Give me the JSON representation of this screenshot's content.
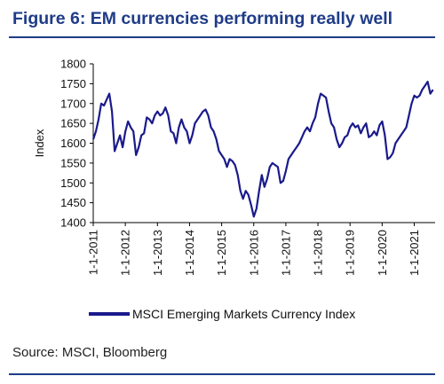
{
  "title": "Figure 6: EM currencies performing really well",
  "source": "Source: MSCI, Bloomberg",
  "colors": {
    "line": "#1a1a8c",
    "title": "#1f3c88",
    "rule": "#1f3c88"
  },
  "chart_data": {
    "type": "line",
    "title": "",
    "xlabel": "",
    "ylabel": "Index",
    "ylim": [
      1400,
      1800
    ],
    "yticks": [
      1400,
      1450,
      1500,
      1550,
      1600,
      1650,
      1700,
      1750,
      1800
    ],
    "xticks": [
      "1-1-2011",
      "1-1-2012",
      "1-1-2013",
      "1-1-2014",
      "1-1-2015",
      "1-1-2016",
      "1-1-2017",
      "1-1-2018",
      "1-1-2019",
      "1-1-2020",
      "1-1-2021"
    ],
    "grid": false,
    "legend_position": "bottom",
    "series": [
      {
        "name": "MSCI Emerging Markets Currency Index",
        "points": [
          [
            "2011-01-01",
            1610
          ],
          [
            "2011-02-01",
            1630
          ],
          [
            "2011-03-01",
            1660
          ],
          [
            "2011-04-01",
            1700
          ],
          [
            "2011-05-01",
            1695
          ],
          [
            "2011-06-01",
            1710
          ],
          [
            "2011-07-01",
            1725
          ],
          [
            "2011-08-01",
            1680
          ],
          [
            "2011-09-01",
            1580
          ],
          [
            "2011-10-01",
            1600
          ],
          [
            "2011-11-01",
            1620
          ],
          [
            "2011-12-01",
            1590
          ],
          [
            "2012-01-01",
            1630
          ],
          [
            "2012-02-01",
            1655
          ],
          [
            "2012-03-01",
            1640
          ],
          [
            "2012-04-01",
            1630
          ],
          [
            "2012-05-01",
            1570
          ],
          [
            "2012-06-01",
            1590
          ],
          [
            "2012-07-01",
            1620
          ],
          [
            "2012-08-01",
            1625
          ],
          [
            "2012-09-01",
            1665
          ],
          [
            "2012-10-01",
            1660
          ],
          [
            "2012-11-01",
            1650
          ],
          [
            "2012-12-01",
            1670
          ],
          [
            "2013-01-01",
            1680
          ],
          [
            "2013-02-01",
            1670
          ],
          [
            "2013-03-01",
            1675
          ],
          [
            "2013-04-01",
            1690
          ],
          [
            "2013-05-01",
            1670
          ],
          [
            "2013-06-01",
            1630
          ],
          [
            "2013-07-01",
            1625
          ],
          [
            "2013-08-01",
            1600
          ],
          [
            "2013-09-01",
            1640
          ],
          [
            "2013-10-01",
            1660
          ],
          [
            "2013-11-01",
            1640
          ],
          [
            "2013-12-01",
            1630
          ],
          [
            "2014-01-01",
            1600
          ],
          [
            "2014-02-01",
            1620
          ],
          [
            "2014-03-01",
            1650
          ],
          [
            "2014-04-01",
            1660
          ],
          [
            "2014-05-01",
            1670
          ],
          [
            "2014-06-01",
            1680
          ],
          [
            "2014-07-01",
            1685
          ],
          [
            "2014-08-01",
            1670
          ],
          [
            "2014-09-01",
            1640
          ],
          [
            "2014-10-01",
            1630
          ],
          [
            "2014-11-01",
            1610
          ],
          [
            "2014-12-01",
            1580
          ],
          [
            "2015-01-01",
            1570
          ],
          [
            "2015-02-01",
            1560
          ],
          [
            "2015-03-01",
            1540
          ],
          [
            "2015-04-01",
            1560
          ],
          [
            "2015-05-01",
            1555
          ],
          [
            "2015-06-01",
            1545
          ],
          [
            "2015-07-01",
            1520
          ],
          [
            "2015-08-01",
            1480
          ],
          [
            "2015-09-01",
            1460
          ],
          [
            "2015-10-01",
            1480
          ],
          [
            "2015-11-01",
            1470
          ],
          [
            "2015-12-01",
            1445
          ],
          [
            "2016-01-01",
            1415
          ],
          [
            "2016-02-01",
            1435
          ],
          [
            "2016-03-01",
            1480
          ],
          [
            "2016-04-01",
            1520
          ],
          [
            "2016-05-01",
            1490
          ],
          [
            "2016-06-01",
            1510
          ],
          [
            "2016-07-01",
            1540
          ],
          [
            "2016-08-01",
            1550
          ],
          [
            "2016-09-01",
            1545
          ],
          [
            "2016-10-01",
            1540
          ],
          [
            "2016-11-01",
            1500
          ],
          [
            "2016-12-01",
            1505
          ],
          [
            "2017-01-01",
            1530
          ],
          [
            "2017-02-01",
            1560
          ],
          [
            "2017-03-01",
            1570
          ],
          [
            "2017-04-01",
            1580
          ],
          [
            "2017-05-01",
            1590
          ],
          [
            "2017-06-01",
            1600
          ],
          [
            "2017-07-01",
            1615
          ],
          [
            "2017-08-01",
            1630
          ],
          [
            "2017-09-01",
            1640
          ],
          [
            "2017-10-01",
            1630
          ],
          [
            "2017-11-01",
            1650
          ],
          [
            "2017-12-01",
            1665
          ],
          [
            "2018-01-01",
            1700
          ],
          [
            "2018-02-01",
            1725
          ],
          [
            "2018-03-01",
            1720
          ],
          [
            "2018-04-01",
            1715
          ],
          [
            "2018-05-01",
            1680
          ],
          [
            "2018-06-01",
            1650
          ],
          [
            "2018-07-01",
            1640
          ],
          [
            "2018-08-01",
            1610
          ],
          [
            "2018-09-01",
            1590
          ],
          [
            "2018-10-01",
            1600
          ],
          [
            "2018-11-01",
            1615
          ],
          [
            "2018-12-01",
            1620
          ],
          [
            "2019-01-01",
            1640
          ],
          [
            "2019-02-01",
            1650
          ],
          [
            "2019-03-01",
            1640
          ],
          [
            "2019-04-01",
            1645
          ],
          [
            "2019-05-01",
            1625
          ],
          [
            "2019-06-01",
            1640
          ],
          [
            "2019-07-01",
            1650
          ],
          [
            "2019-08-01",
            1615
          ],
          [
            "2019-09-01",
            1620
          ],
          [
            "2019-10-01",
            1630
          ],
          [
            "2019-11-01",
            1620
          ],
          [
            "2019-12-01",
            1645
          ],
          [
            "2020-01-01",
            1655
          ],
          [
            "2020-02-01",
            1620
          ],
          [
            "2020-03-01",
            1560
          ],
          [
            "2020-04-01",
            1565
          ],
          [
            "2020-05-01",
            1575
          ],
          [
            "2020-06-01",
            1600
          ],
          [
            "2020-07-01",
            1610
          ],
          [
            "2020-08-01",
            1620
          ],
          [
            "2020-09-01",
            1630
          ],
          [
            "2020-10-01",
            1640
          ],
          [
            "2020-11-01",
            1670
          ],
          [
            "2020-12-01",
            1700
          ],
          [
            "2021-01-01",
            1720
          ],
          [
            "2021-02-01",
            1715
          ],
          [
            "2021-03-01",
            1720
          ],
          [
            "2021-04-01",
            1735
          ],
          [
            "2021-05-01",
            1745
          ],
          [
            "2021-06-01",
            1755
          ],
          [
            "2021-07-01",
            1725
          ],
          [
            "2021-08-01",
            1735
          ]
        ]
      }
    ]
  }
}
